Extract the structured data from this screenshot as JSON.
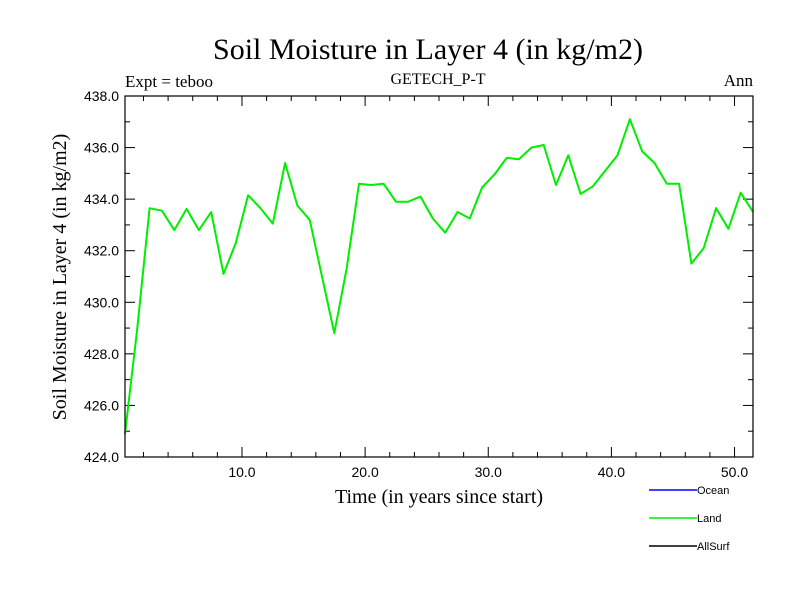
{
  "chart_data": {
    "type": "line",
    "title": "Soil Moisture in Layer 4 (in kg/m2)",
    "subtitle": "GETECH_P-T",
    "left_label": "Expt = teboo",
    "right_label": "Ann",
    "xlabel": "Time (in years since start)",
    "ylabel": "Soil Moisture in Layer 4 (in kg/m2)",
    "xlim": [
      0.5,
      51.5
    ],
    "ylim": [
      424.0,
      438.0
    ],
    "x_ticks": [
      10,
      20,
      30,
      40,
      50
    ],
    "x_tick_labels": [
      "10.0",
      "20.0",
      "30.0",
      "40.0",
      "50.0"
    ],
    "y_ticks": [
      424,
      426,
      428,
      430,
      432,
      434,
      436,
      438
    ],
    "y_tick_labels": [
      "424.0",
      "426.0",
      "428.0",
      "430.0",
      "432.0",
      "434.0",
      "436.0",
      "438.0"
    ],
    "series": [
      {
        "name": "Ocean",
        "color": "#0000ff",
        "x": [],
        "values": []
      },
      {
        "name": "Land",
        "color": "#00ee00",
        "x": [
          0.5,
          1.5,
          2.5,
          3.5,
          4.5,
          5.5,
          6.5,
          7.5,
          8.5,
          9.5,
          10.5,
          11.5,
          12.5,
          13.5,
          14.5,
          15.5,
          16.5,
          17.5,
          18.5,
          19.5,
          20.5,
          21.5,
          22.5,
          23.5,
          24.5,
          25.5,
          26.5,
          27.5,
          28.5,
          29.5,
          30.5,
          31.5,
          32.5,
          33.5,
          34.5,
          35.5,
          36.5,
          37.5,
          38.5,
          39.5,
          40.5,
          41.5,
          42.5,
          43.5,
          44.5,
          45.5,
          46.5,
          47.5,
          48.5,
          49.5,
          50.5,
          51.5
        ],
        "values": [
          424.9,
          429.0,
          433.65,
          433.55,
          432.8,
          433.62,
          432.8,
          433.5,
          431.1,
          432.3,
          434.15,
          433.65,
          433.05,
          435.4,
          433.75,
          433.2,
          431.0,
          428.8,
          431.3,
          434.6,
          434.55,
          434.6,
          433.9,
          433.9,
          434.1,
          433.25,
          432.7,
          433.5,
          433.25,
          434.45,
          434.95,
          435.6,
          435.55,
          436.0,
          436.1,
          434.55,
          435.7,
          434.2,
          434.5,
          435.1,
          435.7,
          437.1,
          435.85,
          435.4,
          434.6,
          434.6,
          431.5,
          432.1,
          433.65,
          432.85,
          434.25,
          433.5
        ]
      },
      {
        "name": "AllSurf",
        "color": "#000000",
        "x": [],
        "values": []
      }
    ]
  }
}
